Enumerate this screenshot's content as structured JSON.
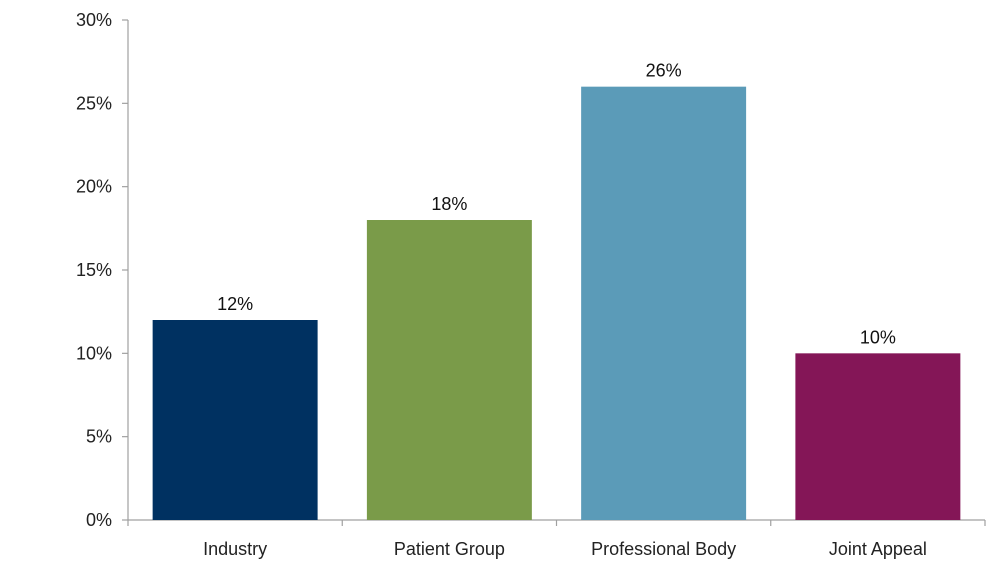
{
  "chart_data": {
    "type": "bar",
    "categories": [
      "Industry",
      "Patient Group",
      "Professional Body",
      "Joint Appeal"
    ],
    "values": [
      12,
      18,
      26,
      10
    ],
    "data_labels": [
      "12%",
      "18%",
      "26%",
      "10%"
    ],
    "colors": [
      "#003161",
      "#7a9b49",
      "#5b9bb8",
      "#841657"
    ],
    "y_ticks": [
      0,
      5,
      10,
      15,
      20,
      25,
      30
    ],
    "y_tick_labels": [
      "0%",
      "5%",
      "10%",
      "15%",
      "20%",
      "25%",
      "30%"
    ],
    "ylim": [
      0,
      30
    ],
    "grid": false,
    "legend": "none"
  }
}
